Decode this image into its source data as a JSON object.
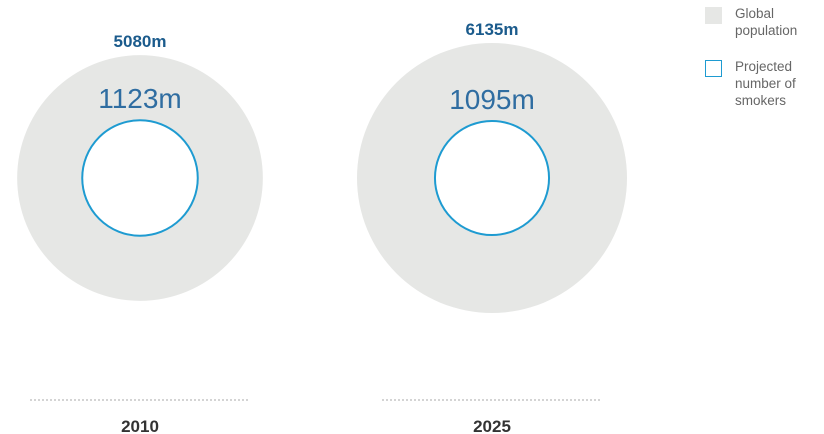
{
  "chart_data": {
    "type": "proportional-circle",
    "series": [
      {
        "name": "Global population",
        "color": "#e6e7e5"
      },
      {
        "name": "Projected number of smokers",
        "color": "#1e9bd1"
      }
    ],
    "groups": [
      {
        "label": "2010",
        "global_population": 5080,
        "global_population_label": "5080m",
        "smokers": 1123,
        "smokers_label": "1123m"
      },
      {
        "label": "2025",
        "global_population": 6135,
        "global_population_label": "6135m",
        "smokers": 1095,
        "smokers_label": "1095m"
      }
    ],
    "unit": "m",
    "colors": {
      "total_label": "#1b5b8c",
      "smokers_label": "#2f6da1",
      "year_label": "#333333",
      "baseline": "#bbbbbb"
    }
  },
  "legend": {
    "items": [
      {
        "label": "Global population",
        "style": "filled"
      },
      {
        "label": "Projected number of smokers",
        "style": "outlined"
      }
    ]
  }
}
